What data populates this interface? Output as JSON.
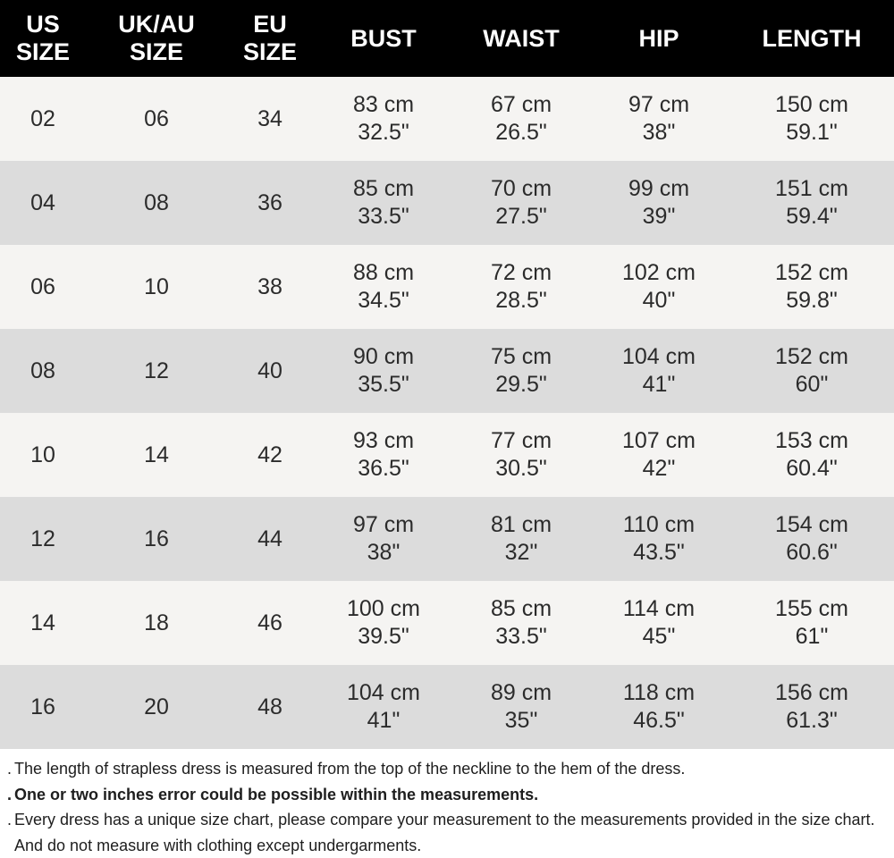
{
  "header": [
    [
      "US",
      "SIZE"
    ],
    [
      "UK/AU",
      "SIZE"
    ],
    [
      "EU",
      "SIZE"
    ],
    [
      "BUST"
    ],
    [
      "WAIST"
    ],
    [
      "HIP"
    ],
    [
      "LENGTH"
    ]
  ],
  "rows": [
    {
      "us": "02",
      "uk": "06",
      "eu": "34",
      "bust": [
        "83 cm",
        "32.5\""
      ],
      "waist": [
        "67 cm",
        "26.5\""
      ],
      "hip": [
        "97 cm",
        "38\""
      ],
      "length": [
        "150 cm",
        "59.1\""
      ]
    },
    {
      "us": "04",
      "uk": "08",
      "eu": "36",
      "bust": [
        "85 cm",
        "33.5\""
      ],
      "waist": [
        "70 cm",
        "27.5\""
      ],
      "hip": [
        "99 cm",
        "39\""
      ],
      "length": [
        "151 cm",
        "59.4\""
      ]
    },
    {
      "us": "06",
      "uk": "10",
      "eu": "38",
      "bust": [
        "88 cm",
        "34.5\""
      ],
      "waist": [
        "72 cm",
        "28.5\""
      ],
      "hip": [
        "102 cm",
        "40\""
      ],
      "length": [
        "152 cm",
        "59.8\""
      ]
    },
    {
      "us": "08",
      "uk": "12",
      "eu": "40",
      "bust": [
        "90 cm",
        "35.5\""
      ],
      "waist": [
        "75 cm",
        "29.5\""
      ],
      "hip": [
        "104 cm",
        "41\""
      ],
      "length": [
        "152 cm",
        "60\""
      ]
    },
    {
      "us": "10",
      "uk": "14",
      "eu": "42",
      "bust": [
        "93 cm",
        "36.5\""
      ],
      "waist": [
        "77 cm",
        "30.5\""
      ],
      "hip": [
        "107 cm",
        "42\""
      ],
      "length": [
        "153 cm",
        "60.4\""
      ]
    },
    {
      "us": "12",
      "uk": "16",
      "eu": "44",
      "bust": [
        "97 cm",
        "38\""
      ],
      "waist": [
        "81 cm",
        "32\""
      ],
      "hip": [
        "110 cm",
        "43.5\""
      ],
      "length": [
        "154 cm",
        "60.6\""
      ]
    },
    {
      "us": "14",
      "uk": "18",
      "eu": "46",
      "bust": [
        "100 cm",
        "39.5\""
      ],
      "waist": [
        "85 cm",
        "33.5\""
      ],
      "hip": [
        "114 cm",
        "45\""
      ],
      "length": [
        "155 cm",
        "61\""
      ]
    },
    {
      "us": "16",
      "uk": "20",
      "eu": "48",
      "bust": [
        "104 cm",
        "41\""
      ],
      "waist": [
        "89 cm",
        "35\""
      ],
      "hip": [
        "118 cm",
        "46.5\""
      ],
      "length": [
        "156 cm",
        "61.3\""
      ]
    }
  ],
  "notes": [
    {
      "text": "The length of strapless dress is measured from the top of the neckline to the hem of the dress.",
      "bold": false
    },
    {
      "text": "One or two inches error could be possible within the measurements.",
      "bold": true
    },
    {
      "text": "Every dress has a unique size chart, please compare your measurement to the measurements provided in the size chart. And do not measure with clothing except undergarments.",
      "bold": false
    }
  ],
  "bullet": ".",
  "colors": {
    "header_bg": "#000000",
    "row_light": "#f5f4f2",
    "row_dark": "#dcdcdc",
    "text": "#2b2b2b"
  }
}
